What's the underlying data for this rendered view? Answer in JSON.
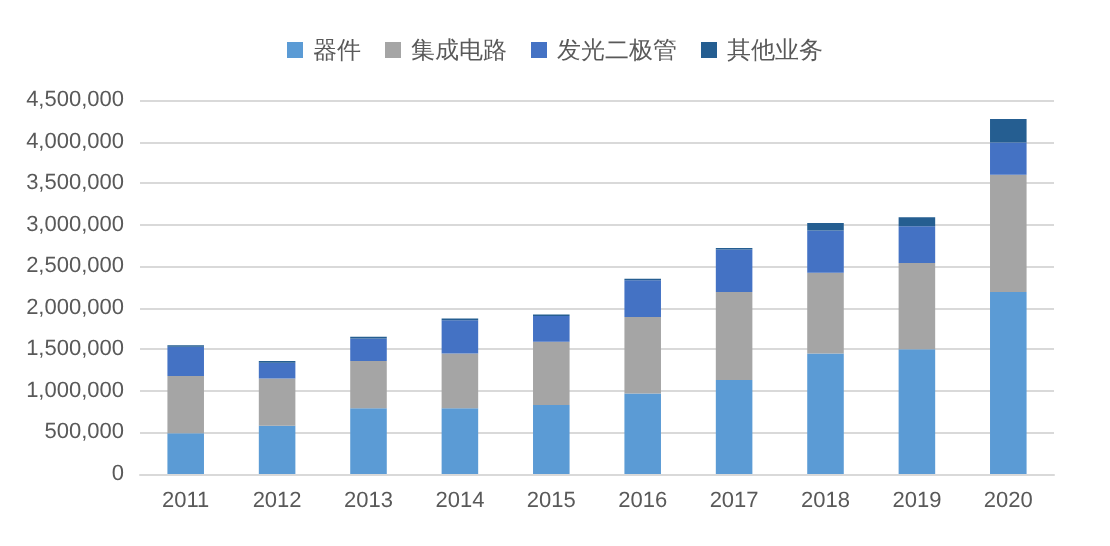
{
  "chart_data": {
    "type": "bar",
    "stacked": true,
    "categories": [
      "2011",
      "2012",
      "2013",
      "2014",
      "2015",
      "2016",
      "2017",
      "2018",
      "2019",
      "2020"
    ],
    "series": [
      {
        "name": "器件",
        "color": "#5b9bd5",
        "values": [
          490000,
          580000,
          790000,
          790000,
          830000,
          970000,
          1130000,
          1450000,
          1500000,
          2190000
        ]
      },
      {
        "name": "集成电路",
        "color": "#a5a5a5",
        "values": [
          690000,
          570000,
          570000,
          660000,
          760000,
          920000,
          1060000,
          970000,
          1040000,
          1410000
        ]
      },
      {
        "name": "发光二极管",
        "color": "#4472c4",
        "values": [
          350000,
          190000,
          270000,
          400000,
          310000,
          440000,
          510000,
          510000,
          440000,
          390000
        ]
      },
      {
        "name": "其他业务",
        "color": "#255e91",
        "values": [
          20000,
          20000,
          20000,
          20000,
          20000,
          20000,
          20000,
          90000,
          110000,
          280000
        ]
      }
    ],
    "ylim": [
      0,
      4500000
    ],
    "yticks": [
      0,
      {
        "value": 500000,
        "label": "500,000"
      },
      {
        "value": 1000000,
        "label": "1,000,000"
      },
      {
        "value": 1500000,
        "label": "1,500,000"
      },
      {
        "value": 2000000,
        "label": "2,000,000"
      },
      {
        "value": 2500000,
        "label": "2,500,000"
      },
      {
        "value": 3000000,
        "label": "3,000,000"
      },
      {
        "value": 3500000,
        "label": "3,500,000"
      },
      {
        "value": 4000000,
        "label": "4,000,000"
      },
      {
        "value": 4500000,
        "label": "4,500,000"
      }
    ],
    "grid": "y",
    "legend": "top"
  }
}
